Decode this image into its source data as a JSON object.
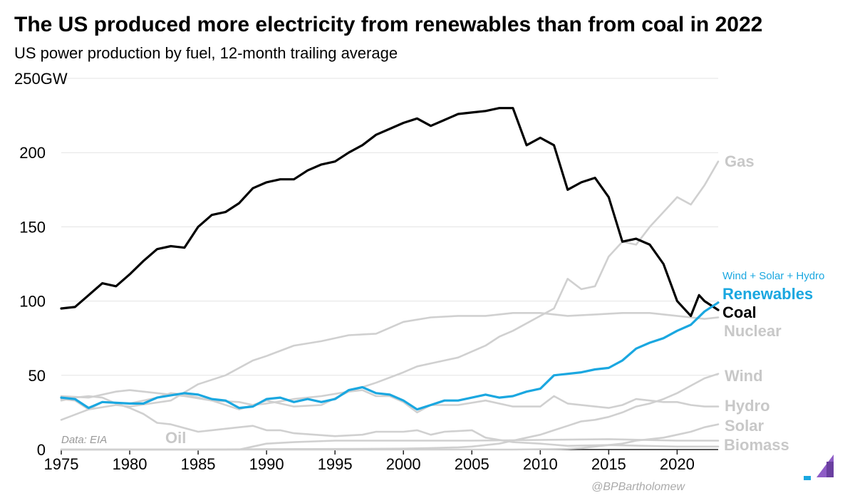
{
  "title": "The US produced more electricity from renewables than from coal in 2022",
  "subtitle": "US power production by fuel, 12-month trailing average",
  "source": "Data: EIA",
  "credit": "@BPBartholomew",
  "colors": {
    "coal": "#000000",
    "renewables": "#1aa7e0",
    "other": "#d0d0d0",
    "other_label": "#c8c8c8"
  },
  "chart_data": {
    "type": "line",
    "title": "The US produced more electricity from renewables than from coal in 2022",
    "subtitle": "US power production by fuel, 12-month trailing average",
    "xlabel": "",
    "ylabel": "",
    "xlim": [
      1975,
      2023
    ],
    "ylim": [
      0,
      250
    ],
    "x_ticks": [
      "1975",
      "1980",
      "1985",
      "1990",
      "1995",
      "2000",
      "2005",
      "2010",
      "2015",
      "2020"
    ],
    "y_ticks": [
      "0",
      "50",
      "100",
      "150",
      "200",
      "250GW"
    ],
    "grid": "horizontal",
    "annotations": [
      "Wind + Solar + Hydro"
    ],
    "series": [
      {
        "name": "Gas",
        "color": "#d0d0d0",
        "label_color": "#c8c8c8",
        "highlight": false,
        "points": [
          [
            1975,
            36
          ],
          [
            1977,
            35
          ],
          [
            1979,
            39
          ],
          [
            1980,
            40
          ],
          [
            1982,
            38
          ],
          [
            1984,
            36
          ],
          [
            1986,
            33
          ],
          [
            1988,
            32
          ],
          [
            1989,
            30
          ],
          [
            1990,
            31
          ],
          [
            1992,
            34
          ],
          [
            1994,
            36
          ],
          [
            1996,
            39
          ],
          [
            1998,
            45
          ],
          [
            2000,
            52
          ],
          [
            2001,
            56
          ],
          [
            2002,
            58
          ],
          [
            2004,
            62
          ],
          [
            2006,
            70
          ],
          [
            2007,
            76
          ],
          [
            2008,
            80
          ],
          [
            2010,
            90
          ],
          [
            2011,
            95
          ],
          [
            2012,
            115
          ],
          [
            2013,
            108
          ],
          [
            2014,
            110
          ],
          [
            2015,
            130
          ],
          [
            2016,
            140
          ],
          [
            2017,
            138
          ],
          [
            2018,
            150
          ],
          [
            2019,
            160
          ],
          [
            2020,
            170
          ],
          [
            2021,
            165
          ],
          [
            2022,
            178
          ],
          [
            2023,
            194
          ]
        ]
      },
      {
        "name": "Nuclear",
        "color": "#d0d0d0",
        "label_color": "#c8c8c8",
        "highlight": false,
        "points": [
          [
            1975,
            20
          ],
          [
            1977,
            27
          ],
          [
            1979,
            30
          ],
          [
            1980,
            29
          ],
          [
            1983,
            33
          ],
          [
            1985,
            44
          ],
          [
            1987,
            50
          ],
          [
            1989,
            60
          ],
          [
            1990,
            63
          ],
          [
            1992,
            70
          ],
          [
            1994,
            73
          ],
          [
            1996,
            77
          ],
          [
            1998,
            78
          ],
          [
            2000,
            86
          ],
          [
            2002,
            89
          ],
          [
            2004,
            90
          ],
          [
            2006,
            90
          ],
          [
            2008,
            92
          ],
          [
            2010,
            92
          ],
          [
            2012,
            90
          ],
          [
            2014,
            91
          ],
          [
            2016,
            92
          ],
          [
            2018,
            92
          ],
          [
            2020,
            90
          ],
          [
            2021,
            89
          ],
          [
            2022,
            88
          ],
          [
            2023,
            89
          ]
        ]
      },
      {
        "name": "Wind",
        "color": "#d0d0d0",
        "label_color": "#c8c8c8",
        "highlight": false,
        "points": [
          [
            1975,
            0
          ],
          [
            1985,
            0
          ],
          [
            1990,
            0.3
          ],
          [
            1995,
            0.4
          ],
          [
            2000,
            0.6
          ],
          [
            2002,
            1
          ],
          [
            2004,
            1.5
          ],
          [
            2005,
            2
          ],
          [
            2007,
            4
          ],
          [
            2008,
            6
          ],
          [
            2009,
            8
          ],
          [
            2010,
            10
          ],
          [
            2011,
            13
          ],
          [
            2012,
            16
          ],
          [
            2013,
            19
          ],
          [
            2014,
            20
          ],
          [
            2015,
            22
          ],
          [
            2016,
            25
          ],
          [
            2017,
            29
          ],
          [
            2018,
            31
          ],
          [
            2019,
            34
          ],
          [
            2020,
            38
          ],
          [
            2021,
            43
          ],
          [
            2022,
            48
          ],
          [
            2023,
            51
          ]
        ]
      },
      {
        "name": "Hydro",
        "color": "#d0d0d0",
        "label_color": "#c8c8c8",
        "highlight": false,
        "points": [
          [
            1975,
            34
          ],
          [
            1976,
            33
          ],
          [
            1977,
            27
          ],
          [
            1978,
            32
          ],
          [
            1980,
            31
          ],
          [
            1982,
            35
          ],
          [
            1983,
            38
          ],
          [
            1984,
            37
          ],
          [
            1986,
            33
          ],
          [
            1988,
            27
          ],
          [
            1989,
            30
          ],
          [
            1990,
            33
          ],
          [
            1992,
            29
          ],
          [
            1994,
            30
          ],
          [
            1996,
            39
          ],
          [
            1997,
            40
          ],
          [
            1998,
            36
          ],
          [
            1999,
            36
          ],
          [
            2000,
            32
          ],
          [
            2001,
            25
          ],
          [
            2002,
            30
          ],
          [
            2004,
            30
          ],
          [
            2006,
            33
          ],
          [
            2008,
            29
          ],
          [
            2010,
            29
          ],
          [
            2011,
            36
          ],
          [
            2012,
            31
          ],
          [
            2014,
            29
          ],
          [
            2015,
            28
          ],
          [
            2016,
            30
          ],
          [
            2017,
            34
          ],
          [
            2018,
            33
          ],
          [
            2019,
            32
          ],
          [
            2020,
            32
          ],
          [
            2021,
            30
          ],
          [
            2022,
            29
          ],
          [
            2023,
            29
          ]
        ]
      },
      {
        "name": "Solar",
        "color": "#d0d0d0",
        "label_color": "#c8c8c8",
        "highlight": false,
        "points": [
          [
            1975,
            0
          ],
          [
            2008,
            0
          ],
          [
            2010,
            0.2
          ],
          [
            2011,
            0.3
          ],
          [
            2012,
            0.5
          ],
          [
            2013,
            1
          ],
          [
            2014,
            2
          ],
          [
            2015,
            3
          ],
          [
            2016,
            4
          ],
          [
            2017,
            6
          ],
          [
            2018,
            7
          ],
          [
            2019,
            8
          ],
          [
            2020,
            10
          ],
          [
            2021,
            12
          ],
          [
            2022,
            15
          ],
          [
            2023,
            17
          ]
        ]
      },
      {
        "name": "Biomass",
        "color": "#d0d0d0",
        "label_color": "#c8c8c8",
        "highlight": false,
        "points": [
          [
            1975,
            0
          ],
          [
            1988,
            0
          ],
          [
            1989,
            2
          ],
          [
            1990,
            4
          ],
          [
            1992,
            5
          ],
          [
            1995,
            6
          ],
          [
            2000,
            6
          ],
          [
            2005,
            6
          ],
          [
            2010,
            6.5
          ],
          [
            2015,
            7
          ],
          [
            2020,
            6
          ],
          [
            2023,
            6
          ]
        ]
      },
      {
        "name": "Oil",
        "color": "#d0d0d0",
        "label_color": "#c8c8c8",
        "highlight": false,
        "points": [
          [
            1975,
            33
          ],
          [
            1976,
            35
          ],
          [
            1977,
            36
          ],
          [
            1978,
            35
          ],
          [
            1979,
            31
          ],
          [
            1980,
            28
          ],
          [
            1981,
            24
          ],
          [
            1982,
            18
          ],
          [
            1983,
            17
          ],
          [
            1985,
            12
          ],
          [
            1986,
            13
          ],
          [
            1988,
            15
          ],
          [
            1989,
            16
          ],
          [
            1990,
            13
          ],
          [
            1991,
            13
          ],
          [
            1992,
            11
          ],
          [
            1995,
            9
          ],
          [
            1997,
            10
          ],
          [
            1998,
            12
          ],
          [
            1999,
            12
          ],
          [
            2000,
            12
          ],
          [
            2001,
            13
          ],
          [
            2002,
            10
          ],
          [
            2003,
            12
          ],
          [
            2005,
            13
          ],
          [
            2006,
            8
          ],
          [
            2008,
            5
          ],
          [
            2010,
            4
          ],
          [
            2012,
            2.5
          ],
          [
            2015,
            3
          ],
          [
            2020,
            2
          ],
          [
            2023,
            2
          ]
        ]
      },
      {
        "name": "Coal",
        "color": "#000000",
        "label_color": "#000000",
        "highlight": true,
        "points": [
          [
            1975,
            95
          ],
          [
            1976,
            96
          ],
          [
            1977,
            104
          ],
          [
            1978,
            112
          ],
          [
            1979,
            110
          ],
          [
            1980,
            118
          ],
          [
            1981,
            127
          ],
          [
            1982,
            135
          ],
          [
            1983,
            137
          ],
          [
            1984,
            136
          ],
          [
            1985,
            150
          ],
          [
            1986,
            158
          ],
          [
            1987,
            160
          ],
          [
            1988,
            166
          ],
          [
            1989,
            176
          ],
          [
            1990,
            180
          ],
          [
            1991,
            182
          ],
          [
            1992,
            182
          ],
          [
            1993,
            188
          ],
          [
            1994,
            192
          ],
          [
            1995,
            194
          ],
          [
            1996,
            200
          ],
          [
            1997,
            205
          ],
          [
            1998,
            212
          ],
          [
            1999,
            216
          ],
          [
            2000,
            220
          ],
          [
            2001,
            223
          ],
          [
            2002,
            218
          ],
          [
            2003,
            222
          ],
          [
            2004,
            226
          ],
          [
            2005,
            227
          ],
          [
            2006,
            228
          ],
          [
            2007,
            230
          ],
          [
            2008,
            230
          ],
          [
            2009,
            205
          ],
          [
            2010,
            210
          ],
          [
            2011,
            205
          ],
          [
            2012,
            175
          ],
          [
            2013,
            180
          ],
          [
            2014,
            183
          ],
          [
            2015,
            170
          ],
          [
            2016,
            140
          ],
          [
            2017,
            142
          ],
          [
            2018,
            138
          ],
          [
            2019,
            125
          ],
          [
            2020,
            100
          ],
          [
            2021,
            90
          ],
          [
            2021.6,
            104
          ],
          [
            2022,
            100
          ],
          [
            2022.5,
            97
          ],
          [
            2023,
            94
          ]
        ]
      },
      {
        "name": "Renewables",
        "color": "#1aa7e0",
        "label_color": "#1aa7e0",
        "highlight": true,
        "points": [
          [
            1975,
            35
          ],
          [
            1976,
            34
          ],
          [
            1977,
            28
          ],
          [
            1978,
            32
          ],
          [
            1980,
            31
          ],
          [
            1981,
            31
          ],
          [
            1982,
            35
          ],
          [
            1984,
            38
          ],
          [
            1985,
            37
          ],
          [
            1986,
            34
          ],
          [
            1987,
            33
          ],
          [
            1988,
            28
          ],
          [
            1989,
            29
          ],
          [
            1990,
            34
          ],
          [
            1991,
            35
          ],
          [
            1992,
            32
          ],
          [
            1993,
            34
          ],
          [
            1994,
            32
          ],
          [
            1995,
            34
          ],
          [
            1996,
            40
          ],
          [
            1997,
            42
          ],
          [
            1998,
            38
          ],
          [
            1999,
            37
          ],
          [
            2000,
            33
          ],
          [
            2001,
            27
          ],
          [
            2002,
            30
          ],
          [
            2003,
            33
          ],
          [
            2004,
            33
          ],
          [
            2005,
            35
          ],
          [
            2006,
            37
          ],
          [
            2007,
            35
          ],
          [
            2008,
            36
          ],
          [
            2009,
            39
          ],
          [
            2010,
            41
          ],
          [
            2011,
            50
          ],
          [
            2012,
            51
          ],
          [
            2013,
            52
          ],
          [
            2014,
            54
          ],
          [
            2015,
            55
          ],
          [
            2016,
            60
          ],
          [
            2017,
            68
          ],
          [
            2018,
            72
          ],
          [
            2019,
            75
          ],
          [
            2020,
            80
          ],
          [
            2021,
            84
          ],
          [
            2022,
            93
          ],
          [
            2023,
            99
          ]
        ]
      }
    ]
  }
}
